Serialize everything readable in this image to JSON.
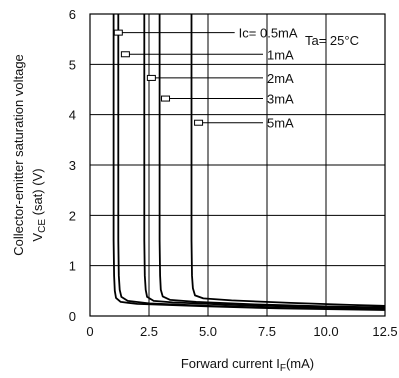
{
  "chart_data": {
    "type": "line",
    "title": "",
    "xlabel_prefix": "Forward current I",
    "xlabel_sub": "F",
    "xlabel_suffix": "(mA)",
    "ylabel_line1": "Collector-emitter saturation voltage",
    "ylabel_line2_prefix": "V",
    "ylabel_line2_sub": "CE",
    "ylabel_line2_suffix": " (sat) (V)",
    "xlim": [
      0,
      12.5
    ],
    "ylim": [
      0,
      6
    ],
    "x_ticks": [
      "0",
      "2.5",
      "5.0",
      "7.5",
      "10.0",
      "12.5"
    ],
    "x_tick_values": [
      0,
      2.5,
      5.0,
      7.5,
      10.0,
      12.5
    ],
    "y_ticks": [
      "0",
      "1",
      "2",
      "3",
      "4",
      "5",
      "6"
    ],
    "y_tick_values": [
      0,
      1,
      2,
      3,
      4,
      5,
      6
    ],
    "grid": true,
    "condition": "Ta= 25°C",
    "series": [
      {
        "name": "Ic= 0.5mA",
        "label_pos": [
          6.3,
          5.63
        ],
        "marker": [
          1.2,
          5.63
        ],
        "x": [
          1.0,
          1.0,
          1.02,
          1.05,
          1.1,
          1.3,
          2.0,
          5.0,
          8.0,
          12.5
        ],
        "y": [
          6.0,
          1.5,
          0.8,
          0.5,
          0.36,
          0.28,
          0.24,
          0.19,
          0.15,
          0.12
        ]
      },
      {
        "name": "1mA",
        "label_pos": [
          7.5,
          5.2
        ],
        "marker": [
          1.5,
          5.2
        ],
        "x": [
          1.2,
          1.2,
          1.22,
          1.26,
          1.33,
          1.6,
          2.5,
          5.0,
          8.0,
          12.5
        ],
        "y": [
          6.0,
          1.5,
          0.8,
          0.52,
          0.38,
          0.3,
          0.25,
          0.2,
          0.16,
          0.13
        ]
      },
      {
        "name": "2mA",
        "label_pos": [
          7.5,
          4.73
        ],
        "marker": [
          2.6,
          4.73
        ],
        "x": [
          2.3,
          2.3,
          2.32,
          2.36,
          2.42,
          2.7,
          3.5,
          6.0,
          9.0,
          12.5
        ],
        "y": [
          6.0,
          1.5,
          0.8,
          0.52,
          0.38,
          0.3,
          0.27,
          0.22,
          0.18,
          0.15
        ]
      },
      {
        "name": "3mA",
        "label_pos": [
          7.5,
          4.32
        ],
        "marker": [
          3.2,
          4.32
        ],
        "x": [
          2.95,
          2.95,
          2.97,
          3.0,
          3.08,
          3.4,
          4.5,
          7.0,
          10.0,
          12.5
        ],
        "y": [
          6.0,
          1.5,
          0.8,
          0.52,
          0.39,
          0.32,
          0.28,
          0.23,
          0.19,
          0.17
        ]
      },
      {
        "name": "5mA",
        "label_pos": [
          7.5,
          3.84
        ],
        "marker": [
          4.6,
          3.84
        ],
        "x": [
          4.3,
          4.3,
          4.32,
          4.36,
          4.45,
          4.8,
          6.0,
          8.5,
          11.0,
          12.5
        ],
        "y": [
          6.0,
          1.5,
          0.8,
          0.55,
          0.41,
          0.35,
          0.31,
          0.26,
          0.22,
          0.2
        ]
      }
    ]
  }
}
